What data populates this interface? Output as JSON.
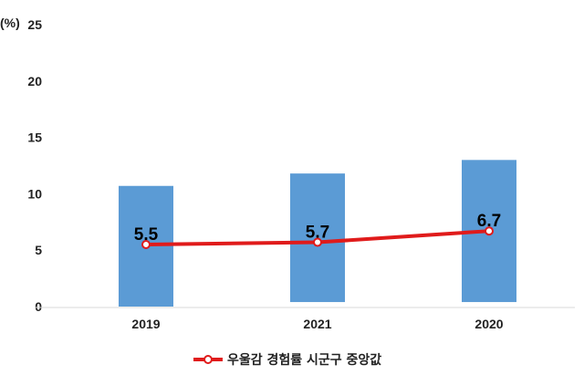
{
  "chart_data": {
    "type": "bar",
    "y_unit_label": "(%)",
    "ylim": [
      0,
      25
    ],
    "y_ticks": [
      0,
      5,
      10,
      15,
      20,
      25
    ],
    "grid": false,
    "categories": [
      "2019",
      "2021",
      "2020"
    ],
    "bars": {
      "values": [
        [
          0,
          10.7
        ],
        [
          0.4,
          11.8
        ],
        [
          0.4,
          13.0
        ]
      ],
      "color": "#5b9bd5"
    },
    "line": {
      "name": "우울감 경험률 시군구 중앙값",
      "values": [
        5.5,
        5.7,
        6.7
      ],
      "labels": [
        "5.5",
        "5.7",
        "6.7"
      ],
      "color": "#e01b1b"
    },
    "legend_position": "bottom"
  }
}
